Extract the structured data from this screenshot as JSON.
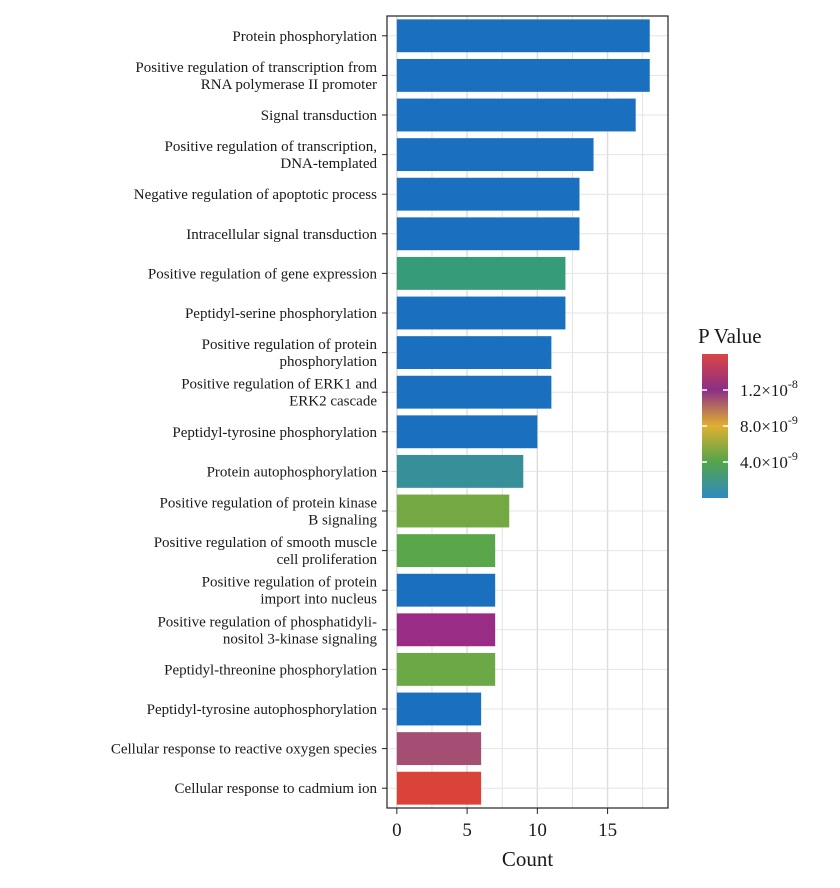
{
  "chart_data": {
    "type": "bar",
    "orientation": "horizontal",
    "xlabel": "Count",
    "xlim": [
      -0.7,
      19.3
    ],
    "xticks": [
      0,
      5,
      10,
      15
    ],
    "grid": true,
    "bars": [
      {
        "label": [
          "Protein phosphorylation"
        ],
        "value": 18,
        "pvalue": 1e-10,
        "color": "#1a6fbf"
      },
      {
        "label": [
          "Positive regulation of transcription from",
          "RNA polymerase II promoter"
        ],
        "value": 18,
        "pvalue": 1e-10,
        "color": "#1a6fbf"
      },
      {
        "label": [
          "Signal transduction"
        ],
        "value": 17,
        "pvalue": 1e-10,
        "color": "#1a6fbf"
      },
      {
        "label": [
          "Positive regulation of transcription,",
          "DNA-templated"
        ],
        "value": 14,
        "pvalue": 1e-10,
        "color": "#1a6fbf"
      },
      {
        "label": [
          "Negative regulation of apoptotic process"
        ],
        "value": 13,
        "pvalue": 1e-10,
        "color": "#1a6fbf"
      },
      {
        "label": [
          "Intracellular signal transduction"
        ],
        "value": 13,
        "pvalue": 1e-10,
        "color": "#1a6fbf"
      },
      {
        "label": [
          "Positive regulation of gene expression"
        ],
        "value": 12,
        "pvalue": 2.5e-09,
        "color": "#369b79"
      },
      {
        "label": [
          "Peptidyl-serine phosphorylation"
        ],
        "value": 12,
        "pvalue": 1e-10,
        "color": "#1a6fbf"
      },
      {
        "label": [
          "Positive regulation of protein",
          "phosphorylation"
        ],
        "value": 11,
        "pvalue": 1e-10,
        "color": "#1a6fbf"
      },
      {
        "label": [
          "Positive regulation of ERK1 and",
          "ERK2 cascade"
        ],
        "value": 11,
        "pvalue": 1e-10,
        "color": "#1a6fbf"
      },
      {
        "label": [
          "Peptidyl-tyrosine phosphorylation"
        ],
        "value": 10,
        "pvalue": 1e-10,
        "color": "#1a6fbf"
      },
      {
        "label": [
          "Protein autophosphorylation"
        ],
        "value": 9,
        "pvalue": 1.5e-09,
        "color": "#368f99"
      },
      {
        "label": [
          "Positive regulation of protein kinase",
          "B signaling"
        ],
        "value": 8,
        "pvalue": 5.5e-09,
        "color": "#74a843"
      },
      {
        "label": [
          "Positive regulation of smooth muscle",
          "cell proliferation"
        ],
        "value": 7,
        "pvalue": 4.5e-09,
        "color": "#5aa64a"
      },
      {
        "label": [
          "Positive regulation of protein",
          "import into nucleus"
        ],
        "value": 7,
        "pvalue": 1e-10,
        "color": "#1a6fbf"
      },
      {
        "label": [
          "Positive regulation of phosphatidyli-",
          "nositol 3-kinase signaling"
        ],
        "value": 7,
        "pvalue": 1.2e-08,
        "color": "#992c84"
      },
      {
        "label": [
          "Peptidyl-threonine phosphorylation"
        ],
        "value": 7,
        "pvalue": 5e-09,
        "color": "#6aa945"
      },
      {
        "label": [
          "Peptidyl-tyrosine autophosphorylation"
        ],
        "value": 6,
        "pvalue": 1e-10,
        "color": "#1a6fbf"
      },
      {
        "label": [
          "Cellular response to reactive oxygen species"
        ],
        "value": 6,
        "pvalue": 1.4e-08,
        "color": "#a34e72"
      },
      {
        "label": [
          "Cellular response to cadmium ion"
        ],
        "value": 6,
        "pvalue": 1.6e-08,
        "color": "#d9433a"
      }
    ],
    "legend": {
      "title": "P Value",
      "placement": "right",
      "range": [
        0,
        1.6e-08
      ],
      "ticks": [
        {
          "value": 1.2e-08,
          "mantissa": "1.2×10",
          "exp": "-8"
        },
        {
          "value": 8e-09,
          "mantissa": "8.0×10",
          "exp": "-9"
        },
        {
          "value": 4e-09,
          "mantissa": "4.0×10",
          "exp": "-9"
        }
      ],
      "gradient": [
        "#2e8bc0",
        "#54a44c",
        "#e0b030",
        "#8c2f86",
        "#d94545"
      ]
    }
  }
}
